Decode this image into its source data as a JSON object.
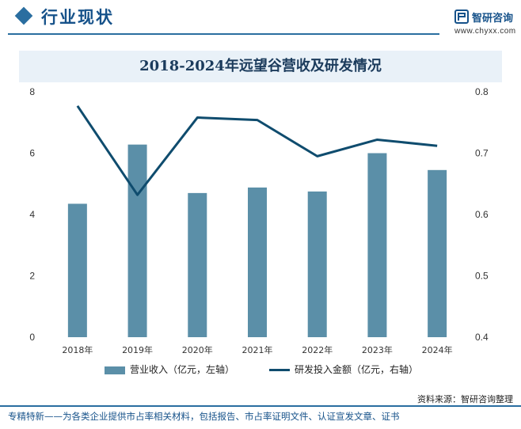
{
  "header": {
    "section_title": "行业现状",
    "brand_name": "智研咨询",
    "brand_url": "www.chyxx.com"
  },
  "chart_data": {
    "type": "bar",
    "title": "2018-2024年远望谷营收及研发情况",
    "categories": [
      "2018年",
      "2019年",
      "2020年",
      "2021年",
      "2022年",
      "2023年",
      "2024年"
    ],
    "series": [
      {
        "name": "营业收入（亿元，左轴）",
        "type": "bar",
        "axis": "left",
        "values": [
          4.35,
          6.28,
          4.7,
          4.88,
          4.75,
          6.0,
          5.45
        ]
      },
      {
        "name": "研发投入金额（亿元，右轴）",
        "type": "line",
        "axis": "right",
        "values": [
          0.777,
          0.632,
          0.758,
          0.754,
          0.695,
          0.722,
          0.712
        ]
      }
    ],
    "y_left": {
      "ticks": [
        "0",
        "2",
        "4",
        "6",
        "8"
      ],
      "ylim": [
        0,
        8
      ]
    },
    "y_right": {
      "ticks": [
        "0.4",
        "0.5",
        "0.6",
        "0.7",
        "0.8"
      ],
      "ylim": [
        0.4,
        0.8
      ]
    },
    "grid": false,
    "legend_position": "bottom",
    "colors": {
      "bar": "#5b8fa8",
      "line": "#0f4c6e"
    }
  },
  "source_text": "资料来源：智研咨询整理",
  "footer_text": "专精特新——为各类企业提供市占率相关材料，包括报告、市占率证明文件、认证宣发文章、证书"
}
